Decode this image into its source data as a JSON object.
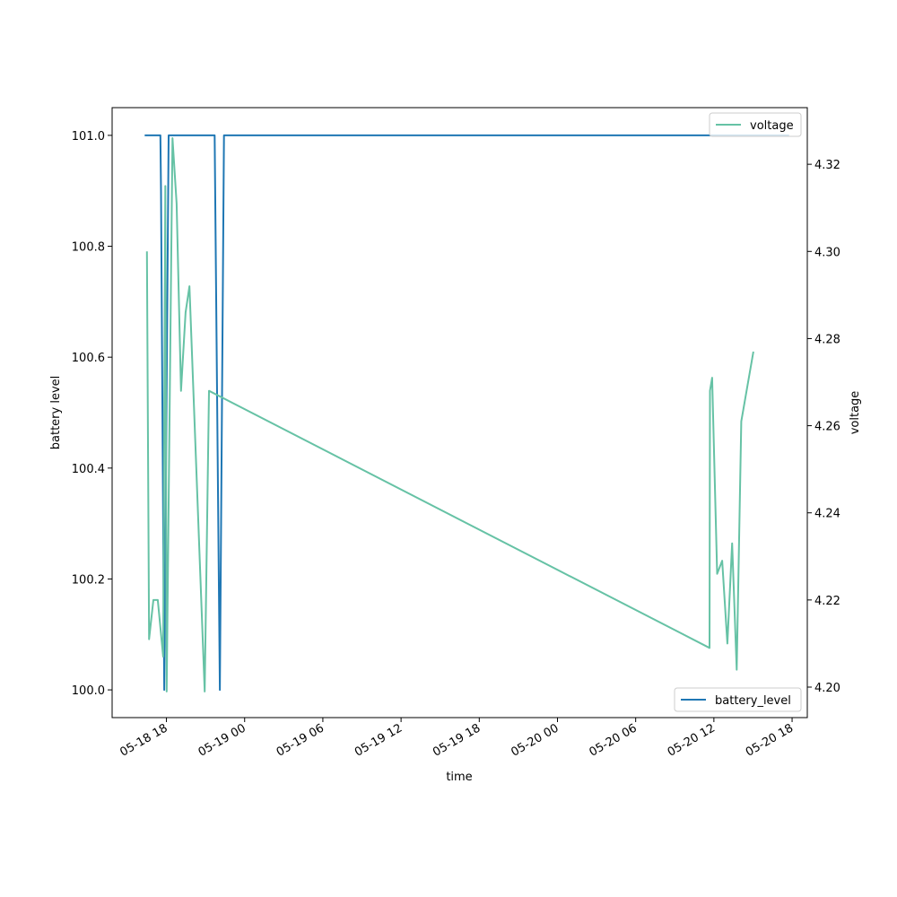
{
  "chart_data": {
    "type": "line",
    "xlabel": "time",
    "ylabel_left": "battery level",
    "ylabel_right": "voltage",
    "x_range": [
      "2024-05-18 13:50",
      "2024-05-20 19:10"
    ],
    "x_ticks": [
      {
        "label": "05-18 18",
        "value": "2024-05-18 18:00"
      },
      {
        "label": "05-19 00",
        "value": "2024-05-19 00:00"
      },
      {
        "label": "05-19 06",
        "value": "2024-05-19 06:00"
      },
      {
        "label": "05-19 12",
        "value": "2024-05-19 12:00"
      },
      {
        "label": "05-19 18",
        "value": "2024-05-19 18:00"
      },
      {
        "label": "05-20 00",
        "value": "2024-05-20 00:00"
      },
      {
        "label": "05-20 06",
        "value": "2024-05-20 06:00"
      },
      {
        "label": "05-20 12",
        "value": "2024-05-20 12:00"
      },
      {
        "label": "05-20 18",
        "value": "2024-05-20 18:00"
      }
    ],
    "y_left": {
      "range": [
        99.95,
        101.05
      ],
      "ticks": [
        100.0,
        100.2,
        100.4,
        100.6,
        100.8,
        101.0
      ],
      "tick_labels": [
        "100.0",
        "100.2",
        "100.4",
        "100.6",
        "100.8",
        "101.0"
      ]
    },
    "y_right": {
      "range": [
        4.193,
        4.333
      ],
      "ticks": [
        4.2,
        4.22,
        4.24,
        4.26,
        4.28,
        4.3,
        4.32
      ],
      "tick_labels": [
        "4.20",
        "4.22",
        "4.24",
        "4.26",
        "4.28",
        "4.30",
        "4.32"
      ]
    },
    "series": [
      {
        "name": "battery_level",
        "axis": "left",
        "color": "#1f77b4",
        "legend_position": "lower-right",
        "points": [
          [
            "2024-05-18 16:20",
            101.0
          ],
          [
            "2024-05-18 17:32",
            101.0
          ],
          [
            "2024-05-18 17:35",
            100.9
          ],
          [
            "2024-05-18 17:50",
            100.0
          ],
          [
            "2024-05-18 18:10",
            101.0
          ],
          [
            "2024-05-18 21:42",
            101.0
          ],
          [
            "2024-05-18 22:06",
            100.0
          ],
          [
            "2024-05-18 22:25",
            101.0
          ],
          [
            "2024-05-20 17:46",
            101.0
          ]
        ]
      },
      {
        "name": "voltage",
        "axis": "right",
        "color": "#66c2a5",
        "legend_position": "upper-right",
        "points": [
          [
            "2024-05-18 16:30",
            4.3
          ],
          [
            "2024-05-18 16:40",
            4.211
          ],
          [
            "2024-05-18 17:00",
            4.22
          ],
          [
            "2024-05-18 17:20",
            4.22
          ],
          [
            "2024-05-18 17:45",
            4.207
          ],
          [
            "2024-05-18 17:55",
            4.315
          ],
          [
            "2024-05-18 18:01",
            4.199
          ],
          [
            "2024-05-18 18:28",
            4.326
          ],
          [
            "2024-05-18 18:47",
            4.311
          ],
          [
            "2024-05-18 19:07",
            4.268
          ],
          [
            "2024-05-18 19:28",
            4.286
          ],
          [
            "2024-05-18 19:46",
            4.292
          ],
          [
            "2024-05-18 20:56",
            4.199
          ],
          [
            "2024-05-18 21:16",
            4.268
          ],
          [
            "2024-05-20 11:40",
            4.209
          ],
          [
            "2024-05-20 11:42",
            4.268
          ],
          [
            "2024-05-20 11:52",
            4.271
          ],
          [
            "2024-05-20 12:15",
            4.226
          ],
          [
            "2024-05-20 12:38",
            4.229
          ],
          [
            "2024-05-20 13:02",
            4.21
          ],
          [
            "2024-05-20 13:24",
            4.233
          ],
          [
            "2024-05-20 13:45",
            4.204
          ],
          [
            "2024-05-20 14:06",
            4.261
          ],
          [
            "2024-05-20 15:02",
            4.277
          ]
        ]
      }
    ]
  }
}
